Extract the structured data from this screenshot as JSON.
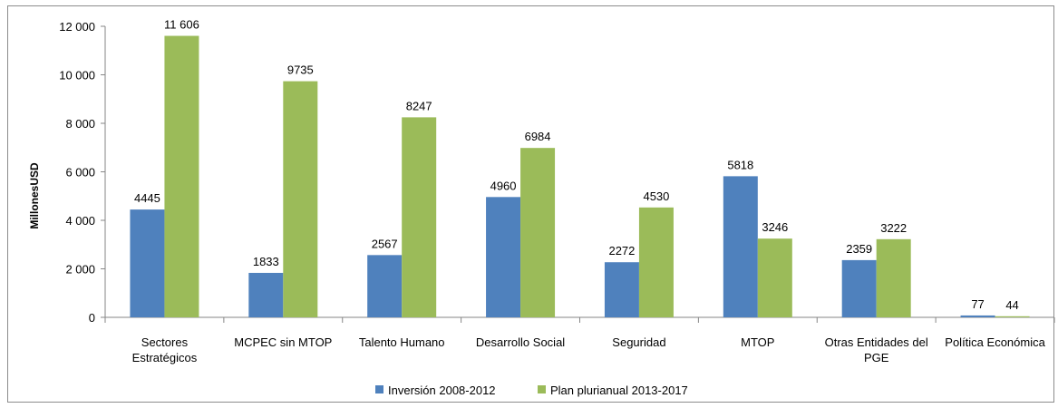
{
  "chart_data": {
    "type": "bar",
    "title": "",
    "ylabel": "MillonesUSD",
    "xlabel": "",
    "ylim": [
      0,
      12000
    ],
    "ytick_step": 2000,
    "ytick_labels": [
      "0",
      "2 000",
      "4 000",
      "6 000",
      "8 000",
      "10 000",
      "12 000"
    ],
    "grid": false,
    "legend_position": "bottom",
    "categories": [
      [
        "Sectores",
        "Estratégicos"
      ],
      [
        "MCPEC sin MTOP"
      ],
      [
        "Talento Humano"
      ],
      [
        "Desarrollo Social"
      ],
      [
        "Seguridad"
      ],
      [
        "MTOP"
      ],
      [
        "Otras Entidades del",
        "PGE"
      ],
      [
        "Política Económica"
      ]
    ],
    "series": [
      {
        "name": "Inversión 2008-2012",
        "color": "#4f81bd",
        "values": [
          4445,
          1833,
          2567,
          4960,
          2272,
          5818,
          2359,
          77
        ],
        "labels": [
          "4445",
          "1833",
          "2567",
          "4960",
          "2272",
          "5818",
          "2359",
          "77"
        ]
      },
      {
        "name": "Plan plurianual 2013-2017",
        "color": "#9bbb59",
        "values": [
          11606,
          9735,
          8247,
          6984,
          4530,
          3246,
          3222,
          44
        ],
        "labels": [
          "11 606",
          "9735",
          "8247",
          "6984",
          "4530",
          "3246",
          "3222",
          "44"
        ]
      }
    ]
  }
}
